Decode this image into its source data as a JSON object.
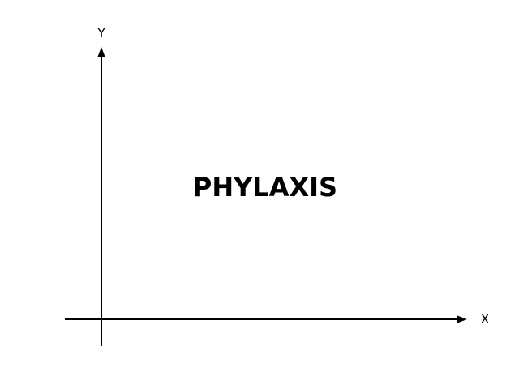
{
  "diagram": {
    "title": "PHYLAXIS",
    "x_axis_label": "X",
    "y_axis_label": "Y"
  },
  "colors": {
    "ink": "#000000",
    "background": "#ffffff"
  }
}
